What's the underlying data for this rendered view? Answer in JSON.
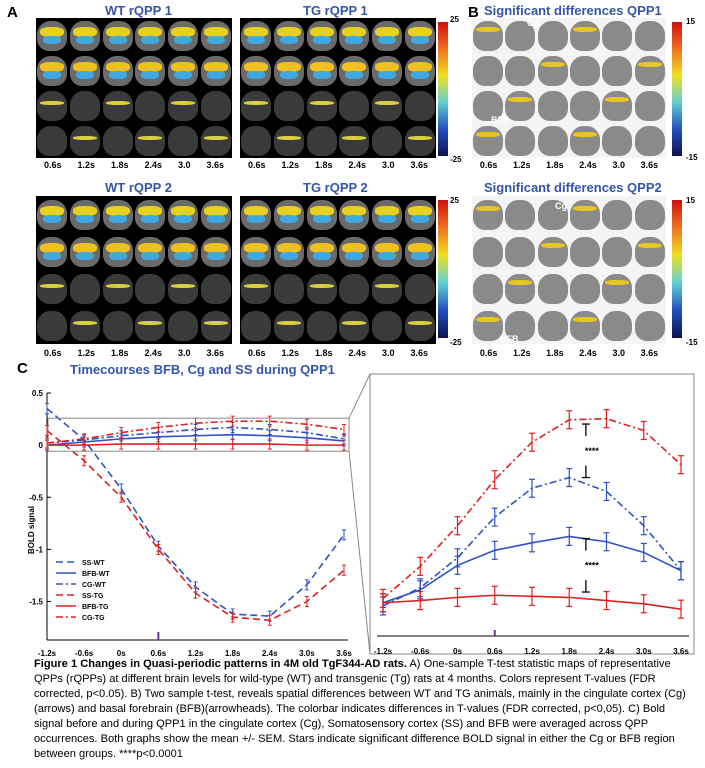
{
  "panels": {
    "a_label": "A",
    "b_label": "B",
    "c_label": "C",
    "wt1_title": "WT rQPP 1",
    "tg1_title": "TG rQPP 1",
    "wt2_title": "WT rQPP 2",
    "tg2_title": "TG rQPP 2",
    "sig1_title": "Significant differences QPP1",
    "sig2_title": "Significant differences QPP2",
    "times": [
      "0.6s",
      "1.2s",
      "1.8s",
      "2.4s",
      "3.0",
      "3.6s"
    ],
    "cbar_a_max": "25",
    "cbar_a_min": "-25",
    "cbar_b_max": "15",
    "cbar_b_min": "-15",
    "label_cg": "Cg",
    "label_bfb": "BFB"
  },
  "colors": {
    "title_blue": "#3555a8",
    "wt_blue": "#3050c8",
    "tg_red": "#e02020"
  },
  "chart_data": [
    {
      "type": "line",
      "title": "Timecourses BFB, Cg and SS during QPP1",
      "ylabel": "BOLD signal",
      "x": [
        "-1.2s",
        "-0.6s",
        "0s",
        "0.6s",
        "1.2s",
        "1.8s",
        "2.4s",
        "3.0s",
        "3.6s"
      ],
      "ylim": [
        -1.85,
        0.5
      ],
      "yticks": [
        "0.5",
        "0",
        "-0.5",
        "-1",
        "-1.5"
      ],
      "series": [
        {
          "name": "SS-WT",
          "values": [
            0.35,
            0.05,
            -0.42,
            -0.97,
            -1.36,
            -1.62,
            -1.64,
            -1.34,
            -0.86
          ]
        },
        {
          "name": "BFB-WT",
          "values": [
            0.0,
            0.03,
            0.06,
            0.08,
            0.09,
            0.1,
            0.09,
            0.07,
            0.04
          ]
        },
        {
          "name": "CG-WT",
          "values": [
            0.02,
            0.05,
            0.09,
            0.12,
            0.15,
            0.17,
            0.15,
            0.12,
            0.06
          ]
        },
        {
          "name": "SS-TG",
          "values": [
            0.14,
            -0.15,
            -0.5,
            -1.0,
            -1.42,
            -1.65,
            -1.68,
            -1.5,
            -1.2
          ]
        },
        {
          "name": "BFB-TG",
          "values": [
            0.0,
            0.0,
            0.01,
            0.01,
            0.01,
            0.01,
            0.01,
            0.0,
            0.0
          ]
        },
        {
          "name": "CG-TG",
          "values": [
            0.02,
            0.06,
            0.12,
            0.17,
            0.21,
            0.23,
            0.23,
            0.2,
            0.15
          ]
        }
      ],
      "legend_position": "bottom-left"
    },
    {
      "type": "line",
      "title": "",
      "x": [
        "-1.2s",
        "-0.6s",
        "0s",
        "0.6s",
        "1.2s",
        "1.8s",
        "2.4s",
        "3.0s",
        "3.6s"
      ],
      "series": [
        {
          "name": "BFB-WT",
          "values": [
            -1.52,
            -1.4,
            -1.17,
            -1.03,
            -0.96,
            -0.9,
            -0.95,
            -1.05,
            -1.22
          ]
        },
        {
          "name": "CG-WT",
          "values": [
            -1.55,
            -1.38,
            -1.1,
            -0.72,
            -0.45,
            -0.35,
            -0.48,
            -0.8,
            -1.22
          ]
        },
        {
          "name": "BFB-TG",
          "values": [
            -1.52,
            -1.5,
            -1.47,
            -1.45,
            -1.46,
            -1.47,
            -1.5,
            -1.53,
            -1.58
          ]
        },
        {
          "name": "CG-TG",
          "values": [
            -1.48,
            -1.18,
            -0.8,
            -0.37,
            -0.02,
            0.19,
            0.2,
            0.09,
            -0.23
          ]
        }
      ],
      "annotations": [
        "****",
        "****"
      ]
    }
  ],
  "caption": {
    "title": "Figure 1 Changes in Quasi-periodic patterns in 4M old TgF344-AD rats.",
    "body": " A) One-sample T-test statistic maps of representative QPPs (rQPPs) at different brain levels for wild-type (WT) and transgenic (Tg) rats at 4 months. Colors represent T-values (FDR corrected, p<0.05). B) Two sample t-test, reveals spatial differences between WT and TG animals, mainly in the cingulate cortex (Cg)(arrows) and basal forebrain (BFB)(arrowheads). The colorbar indicates differences in T-values (FDR corrected, p<0,05). C) Bold signal before and during QPP1 in the cingulate cortex (Cg), Somatosensory cortex (SS) and BFB were averaged across QPP occurrences. Both graphs show the mean +/- SEM. Stars indicate significant difference BOLD signal in either the Cg or BFB region between groups. ****p<0.0001"
  }
}
